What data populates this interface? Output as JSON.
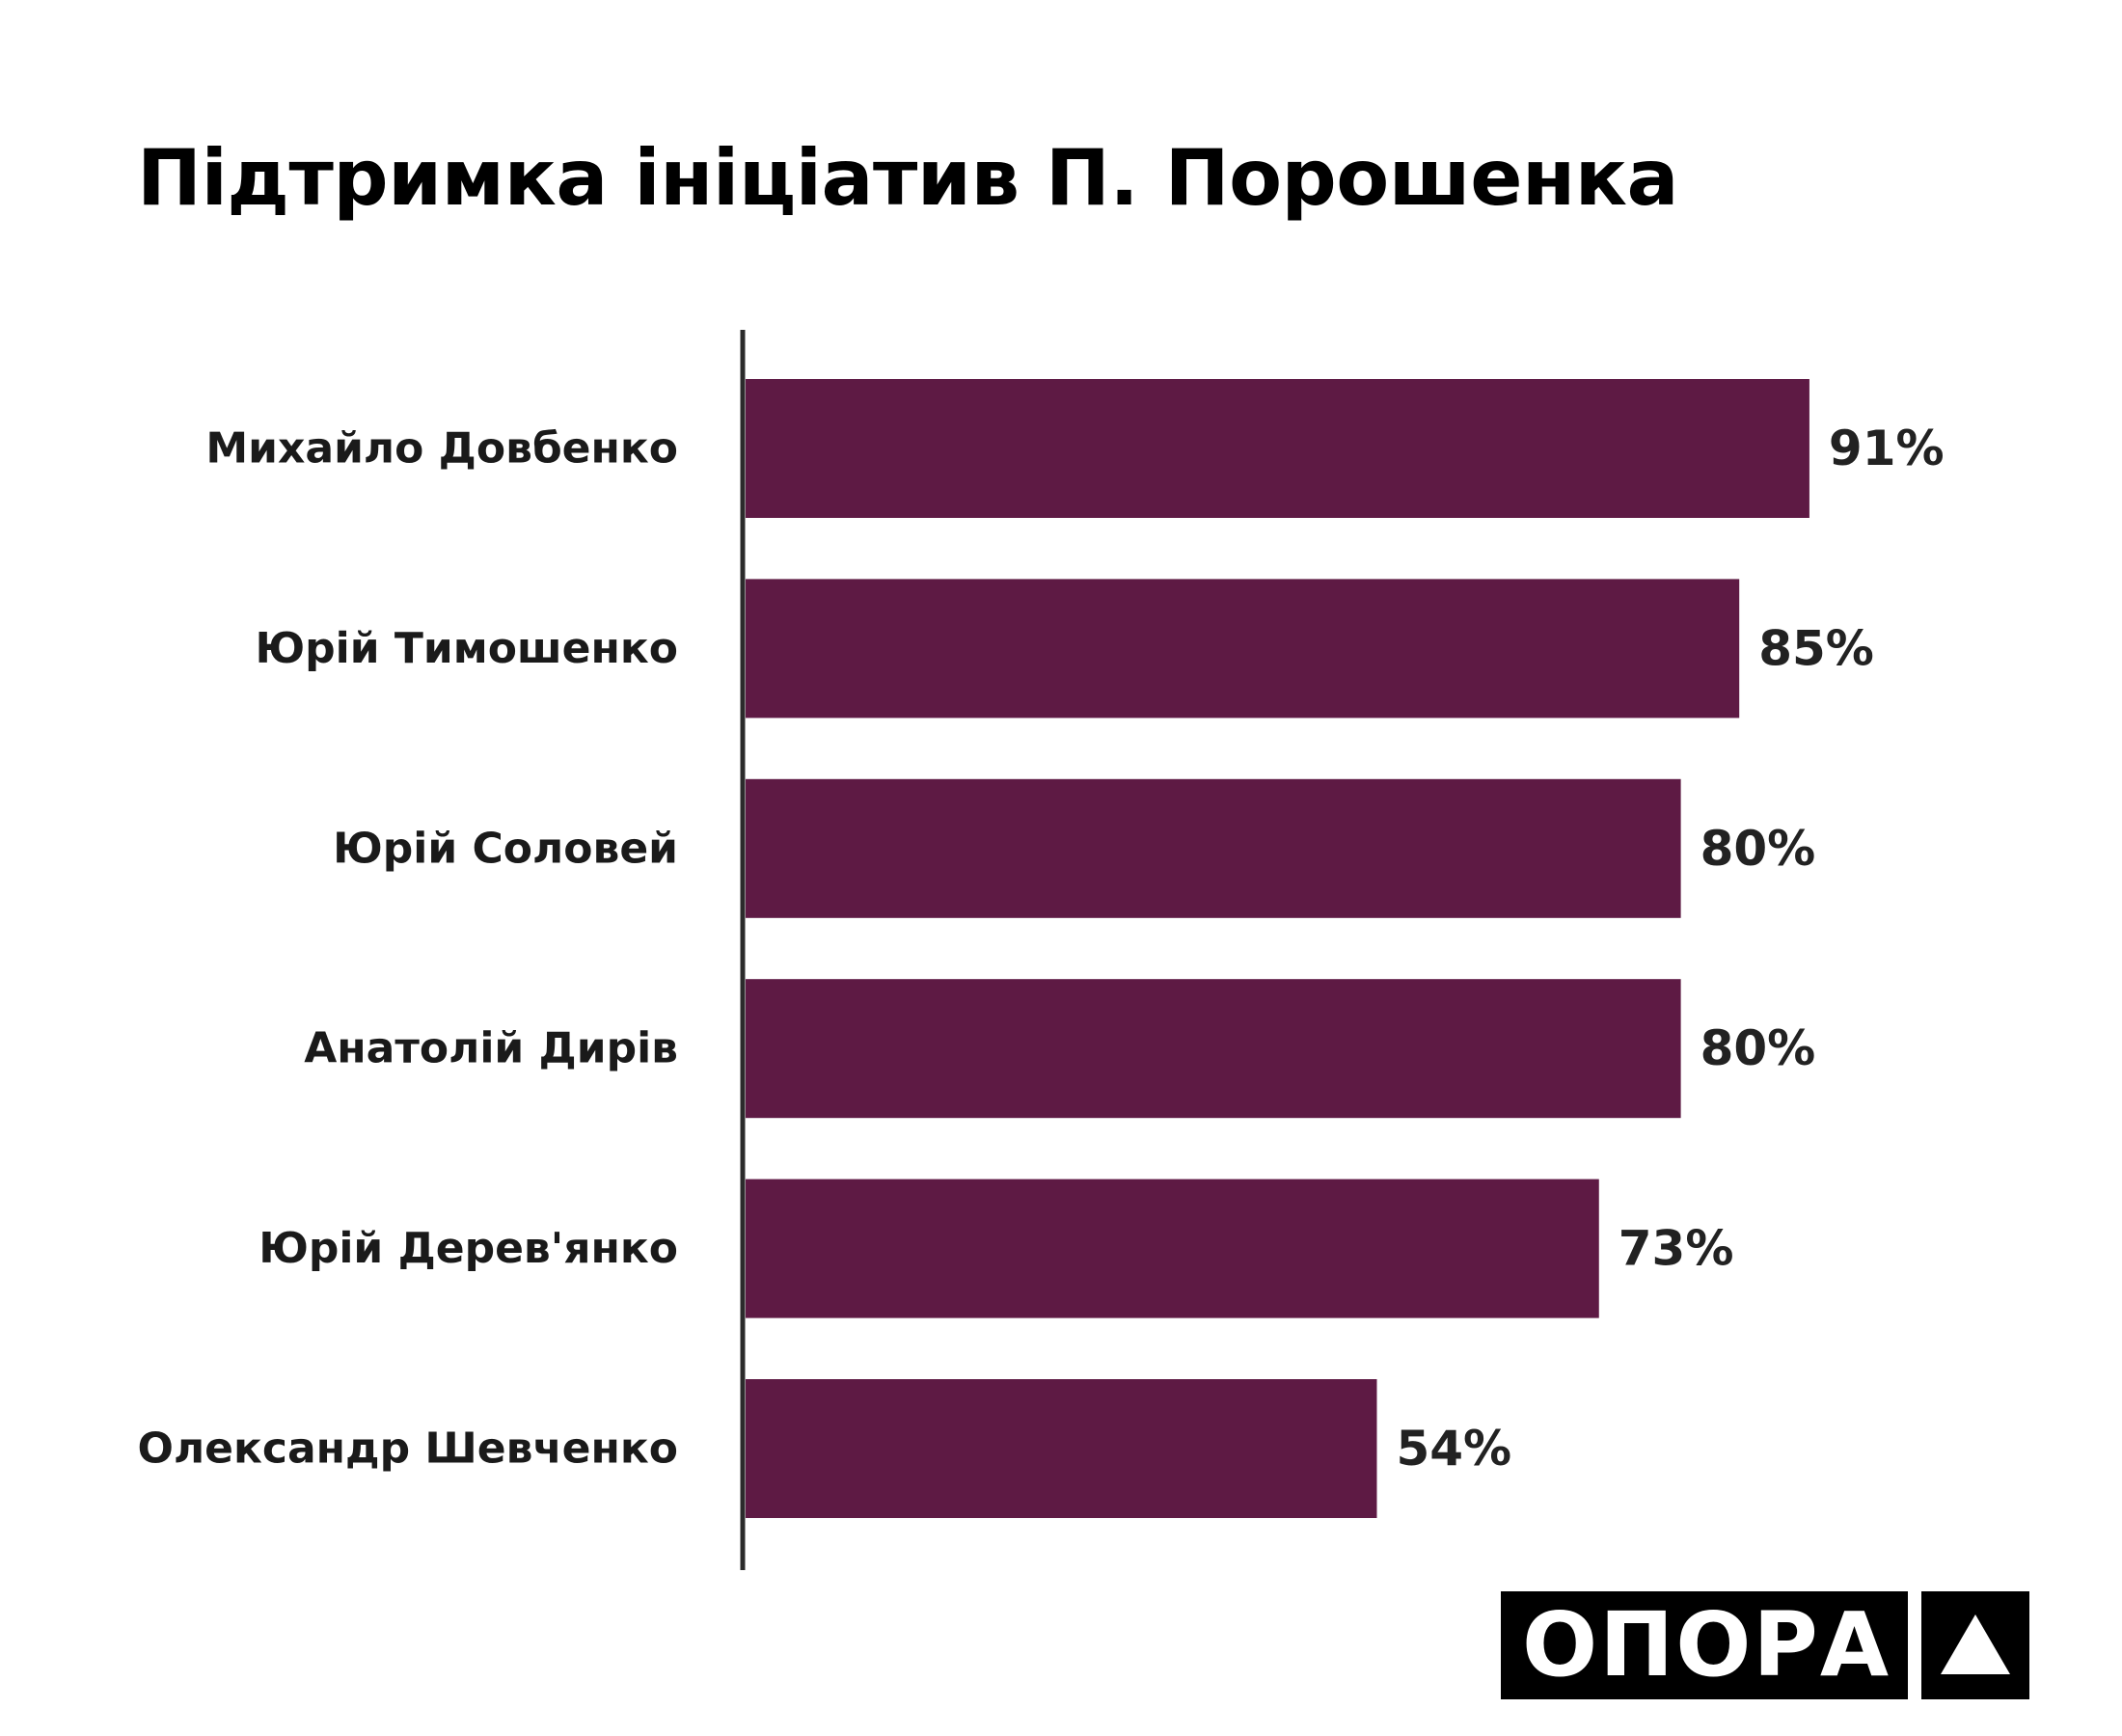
{
  "colors": {
    "bar": "#5e1a44",
    "axis": "#2b2b2b",
    "text": "#1a1a1a"
  },
  "chart_data": {
    "type": "bar",
    "orientation": "horizontal",
    "title": "Підтримка ініціатив П. Порошенка",
    "categories": [
      "Михайло Довбенко",
      "Юрій Тимошенко",
      "Юрій Соловей",
      "Анатолій Дирів",
      "Юрій Дерев'янко",
      "Олександр Шевченко"
    ],
    "values": [
      91,
      85,
      80,
      80,
      73,
      54
    ],
    "value_labels": [
      "91%",
      "85%",
      "80%",
      "80%",
      "73%",
      "54%"
    ],
    "unit": "%",
    "xlim": [
      0,
      100
    ],
    "grid": false,
    "legend": "none"
  },
  "logo": {
    "text": "ОПОРА",
    "icon": "triangle-icon"
  }
}
